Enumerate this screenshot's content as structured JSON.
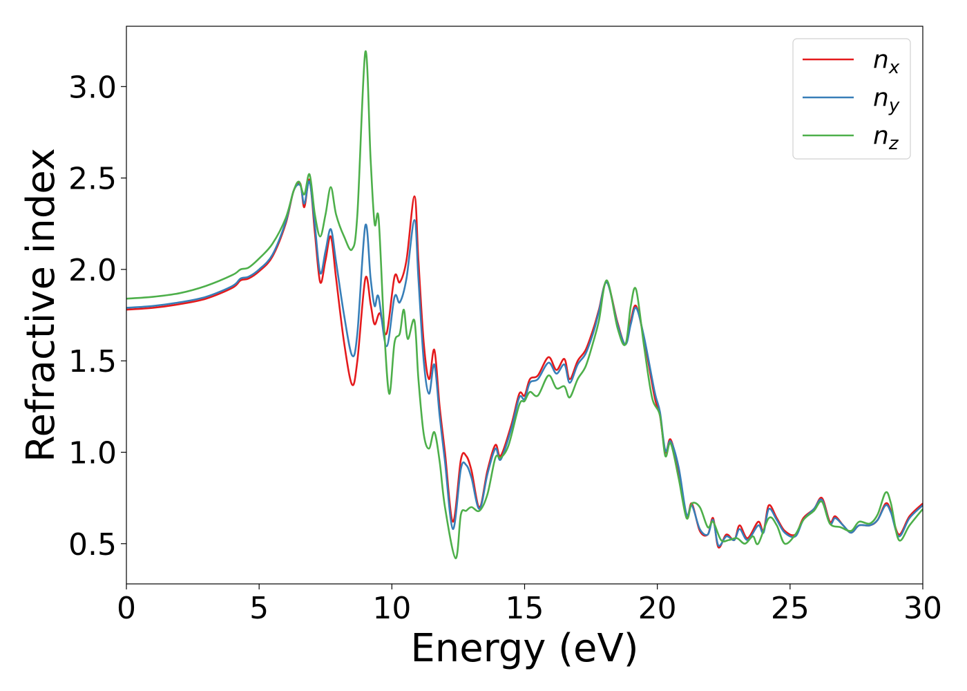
{
  "chart_data": {
    "type": "line",
    "title": "",
    "xlabel": "Energy (eV)",
    "ylabel": "Refractive index",
    "xlim": [
      0,
      30
    ],
    "ylim": [
      0.28,
      3.33
    ],
    "xticks": [
      0,
      5,
      10,
      15,
      20,
      25,
      30
    ],
    "yticks": [
      0.5,
      1.0,
      1.5,
      2.0,
      2.5,
      3.0
    ],
    "grid": false,
    "legend_position": "top-right",
    "series": [
      {
        "name": "n",
        "subscript": "x",
        "color": "#e41a1c",
        "points": [
          [
            0,
            1.78
          ],
          [
            1,
            1.79
          ],
          [
            2,
            1.81
          ],
          [
            3,
            1.84
          ],
          [
            4,
            1.9
          ],
          [
            4.3,
            1.94
          ],
          [
            4.6,
            1.95
          ],
          [
            5,
            1.99
          ],
          [
            5.5,
            2.07
          ],
          [
            6,
            2.25
          ],
          [
            6.3,
            2.43
          ],
          [
            6.55,
            2.47
          ],
          [
            6.7,
            2.34
          ],
          [
            6.9,
            2.49
          ],
          [
            7.1,
            2.2
          ],
          [
            7.3,
            1.93
          ],
          [
            7.5,
            2.05
          ],
          [
            7.7,
            2.18
          ],
          [
            7.9,
            1.95
          ],
          [
            8.2,
            1.6
          ],
          [
            8.5,
            1.37
          ],
          [
            8.7,
            1.5
          ],
          [
            9.0,
            1.95
          ],
          [
            9.2,
            1.81
          ],
          [
            9.35,
            1.7
          ],
          [
            9.55,
            1.76
          ],
          [
            9.8,
            1.65
          ],
          [
            10.1,
            1.96
          ],
          [
            10.3,
            1.93
          ],
          [
            10.55,
            2.05
          ],
          [
            10.85,
            2.4
          ],
          [
            11.0,
            2.05
          ],
          [
            11.2,
            1.6
          ],
          [
            11.4,
            1.4
          ],
          [
            11.6,
            1.56
          ],
          [
            11.8,
            1.25
          ],
          [
            12.0,
            1.0
          ],
          [
            12.3,
            0.62
          ],
          [
            12.6,
            0.96
          ],
          [
            12.8,
            0.98
          ],
          [
            13.0,
            0.9
          ],
          [
            13.3,
            0.7
          ],
          [
            13.6,
            0.9
          ],
          [
            13.9,
            1.04
          ],
          [
            14.1,
            0.98
          ],
          [
            14.5,
            1.15
          ],
          [
            14.8,
            1.32
          ],
          [
            15.0,
            1.31
          ],
          [
            15.2,
            1.4
          ],
          [
            15.5,
            1.42
          ],
          [
            15.9,
            1.52
          ],
          [
            16.2,
            1.45
          ],
          [
            16.5,
            1.51
          ],
          [
            16.7,
            1.4
          ],
          [
            17.0,
            1.5
          ],
          [
            17.3,
            1.56
          ],
          [
            17.6,
            1.68
          ],
          [
            17.8,
            1.78
          ],
          [
            18.1,
            1.93
          ],
          [
            18.5,
            1.71
          ],
          [
            18.8,
            1.59
          ],
          [
            19.0,
            1.72
          ],
          [
            19.2,
            1.8
          ],
          [
            19.5,
            1.62
          ],
          [
            19.9,
            1.3
          ],
          [
            20.1,
            1.2
          ],
          [
            20.3,
            1.0
          ],
          [
            20.5,
            1.07
          ],
          [
            20.8,
            0.9
          ],
          [
            21.1,
            0.65
          ],
          [
            21.3,
            0.72
          ],
          [
            21.6,
            0.57
          ],
          [
            21.9,
            0.55
          ],
          [
            22.1,
            0.64
          ],
          [
            22.3,
            0.48
          ],
          [
            22.6,
            0.55
          ],
          [
            22.9,
            0.52
          ],
          [
            23.1,
            0.6
          ],
          [
            23.4,
            0.53
          ],
          [
            23.8,
            0.62
          ],
          [
            24.0,
            0.57
          ],
          [
            24.2,
            0.71
          ],
          [
            24.5,
            0.64
          ],
          [
            24.8,
            0.57
          ],
          [
            25.2,
            0.55
          ],
          [
            25.5,
            0.64
          ],
          [
            25.9,
            0.69
          ],
          [
            26.2,
            0.75
          ],
          [
            26.5,
            0.62
          ],
          [
            26.7,
            0.65
          ],
          [
            27.0,
            0.6
          ],
          [
            27.3,
            0.56
          ],
          [
            27.6,
            0.6
          ],
          [
            28.0,
            0.6
          ],
          [
            28.3,
            0.63
          ],
          [
            28.6,
            0.72
          ],
          [
            28.8,
            0.68
          ],
          [
            29.1,
            0.55
          ],
          [
            29.5,
            0.65
          ],
          [
            30,
            0.72
          ]
        ]
      },
      {
        "name": "n",
        "subscript": "y",
        "color": "#377eb8",
        "points": [
          [
            0,
            1.79
          ],
          [
            1,
            1.8
          ],
          [
            2,
            1.82
          ],
          [
            3,
            1.85
          ],
          [
            4,
            1.91
          ],
          [
            4.3,
            1.95
          ],
          [
            4.6,
            1.96
          ],
          [
            5,
            2.0
          ],
          [
            5.5,
            2.08
          ],
          [
            6,
            2.26
          ],
          [
            6.3,
            2.43
          ],
          [
            6.55,
            2.46
          ],
          [
            6.7,
            2.36
          ],
          [
            6.9,
            2.48
          ],
          [
            7.1,
            2.24
          ],
          [
            7.3,
            1.98
          ],
          [
            7.5,
            2.1
          ],
          [
            7.7,
            2.22
          ],
          [
            7.9,
            2.04
          ],
          [
            8.2,
            1.75
          ],
          [
            8.5,
            1.53
          ],
          [
            8.7,
            1.65
          ],
          [
            9.0,
            2.24
          ],
          [
            9.2,
            1.95
          ],
          [
            9.35,
            1.8
          ],
          [
            9.5,
            1.85
          ],
          [
            9.8,
            1.58
          ],
          [
            10.1,
            1.85
          ],
          [
            10.3,
            1.82
          ],
          [
            10.55,
            1.95
          ],
          [
            10.85,
            2.27
          ],
          [
            11.0,
            1.95
          ],
          [
            11.2,
            1.5
          ],
          [
            11.4,
            1.32
          ],
          [
            11.6,
            1.48
          ],
          [
            11.8,
            1.2
          ],
          [
            12.0,
            0.95
          ],
          [
            12.3,
            0.58
          ],
          [
            12.6,
            0.91
          ],
          [
            12.8,
            0.93
          ],
          [
            13.0,
            0.86
          ],
          [
            13.3,
            0.69
          ],
          [
            13.6,
            0.88
          ],
          [
            13.9,
            1.02
          ],
          [
            14.1,
            0.96
          ],
          [
            14.5,
            1.13
          ],
          [
            14.8,
            1.3
          ],
          [
            15.0,
            1.29
          ],
          [
            15.2,
            1.38
          ],
          [
            15.5,
            1.4
          ],
          [
            15.9,
            1.49
          ],
          [
            16.2,
            1.43
          ],
          [
            16.5,
            1.48
          ],
          [
            16.7,
            1.38
          ],
          [
            17.0,
            1.48
          ],
          [
            17.3,
            1.54
          ],
          [
            17.6,
            1.66
          ],
          [
            17.8,
            1.77
          ],
          [
            18.1,
            1.93
          ],
          [
            18.5,
            1.7
          ],
          [
            18.8,
            1.59
          ],
          [
            19.0,
            1.7
          ],
          [
            19.2,
            1.79
          ],
          [
            19.5,
            1.63
          ],
          [
            19.9,
            1.33
          ],
          [
            20.1,
            1.22
          ],
          [
            20.3,
            1.01
          ],
          [
            20.5,
            1.06
          ],
          [
            20.8,
            0.92
          ],
          [
            21.1,
            0.66
          ],
          [
            21.3,
            0.71
          ],
          [
            21.6,
            0.58
          ],
          [
            21.9,
            0.55
          ],
          [
            22.1,
            0.63
          ],
          [
            22.3,
            0.49
          ],
          [
            22.6,
            0.54
          ],
          [
            22.9,
            0.52
          ],
          [
            23.1,
            0.58
          ],
          [
            23.4,
            0.52
          ],
          [
            23.8,
            0.6
          ],
          [
            24.0,
            0.56
          ],
          [
            24.2,
            0.69
          ],
          [
            24.5,
            0.63
          ],
          [
            24.8,
            0.56
          ],
          [
            25.2,
            0.54
          ],
          [
            25.5,
            0.63
          ],
          [
            25.9,
            0.69
          ],
          [
            26.2,
            0.74
          ],
          [
            26.5,
            0.61
          ],
          [
            26.7,
            0.64
          ],
          [
            27.0,
            0.6
          ],
          [
            27.3,
            0.56
          ],
          [
            27.6,
            0.6
          ],
          [
            28.0,
            0.6
          ],
          [
            28.3,
            0.63
          ],
          [
            28.6,
            0.71
          ],
          [
            28.8,
            0.67
          ],
          [
            29.1,
            0.54
          ],
          [
            29.5,
            0.64
          ],
          [
            30,
            0.71
          ]
        ]
      },
      {
        "name": "n",
        "subscript": "z",
        "color": "#4daf4a",
        "points": [
          [
            0,
            1.84
          ],
          [
            1,
            1.85
          ],
          [
            2,
            1.87
          ],
          [
            3,
            1.91
          ],
          [
            4,
            1.97
          ],
          [
            4.3,
            2.0
          ],
          [
            4.6,
            2.01
          ],
          [
            5,
            2.06
          ],
          [
            5.5,
            2.14
          ],
          [
            6,
            2.28
          ],
          [
            6.3,
            2.43
          ],
          [
            6.5,
            2.48
          ],
          [
            6.7,
            2.41
          ],
          [
            6.9,
            2.52
          ],
          [
            7.1,
            2.3
          ],
          [
            7.3,
            2.18
          ],
          [
            7.5,
            2.3
          ],
          [
            7.7,
            2.45
          ],
          [
            7.9,
            2.3
          ],
          [
            8.2,
            2.18
          ],
          [
            8.5,
            2.11
          ],
          [
            8.7,
            2.3
          ],
          [
            9.0,
            3.19
          ],
          [
            9.2,
            2.6
          ],
          [
            9.35,
            2.25
          ],
          [
            9.5,
            2.28
          ],
          [
            9.7,
            1.7
          ],
          [
            9.9,
            1.32
          ],
          [
            10.1,
            1.6
          ],
          [
            10.3,
            1.65
          ],
          [
            10.45,
            1.78
          ],
          [
            10.6,
            1.62
          ],
          [
            10.85,
            1.72
          ],
          [
            11.0,
            1.4
          ],
          [
            11.2,
            1.1
          ],
          [
            11.4,
            1.02
          ],
          [
            11.6,
            1.11
          ],
          [
            11.8,
            0.95
          ],
          [
            12.0,
            0.7
          ],
          [
            12.4,
            0.42
          ],
          [
            12.6,
            0.66
          ],
          [
            12.8,
            0.68
          ],
          [
            13.0,
            0.7
          ],
          [
            13.3,
            0.68
          ],
          [
            13.6,
            0.77
          ],
          [
            13.9,
            0.97
          ],
          [
            14.1,
            0.97
          ],
          [
            14.4,
            1.04
          ],
          [
            14.8,
            1.26
          ],
          [
            15.0,
            1.28
          ],
          [
            15.2,
            1.33
          ],
          [
            15.5,
            1.31
          ],
          [
            15.9,
            1.42
          ],
          [
            16.2,
            1.35
          ],
          [
            16.5,
            1.36
          ],
          [
            16.7,
            1.3
          ],
          [
            17.0,
            1.4
          ],
          [
            17.3,
            1.47
          ],
          [
            17.6,
            1.61
          ],
          [
            17.8,
            1.72
          ],
          [
            18.1,
            1.94
          ],
          [
            18.5,
            1.68
          ],
          [
            18.8,
            1.59
          ],
          [
            19.0,
            1.8
          ],
          [
            19.2,
            1.89
          ],
          [
            19.5,
            1.58
          ],
          [
            19.8,
            1.3
          ],
          [
            20.1,
            1.2
          ],
          [
            20.3,
            0.98
          ],
          [
            20.5,
            1.05
          ],
          [
            20.8,
            0.86
          ],
          [
            21.1,
            0.64
          ],
          [
            21.3,
            0.72
          ],
          [
            21.6,
            0.7
          ],
          [
            21.9,
            0.59
          ],
          [
            22.1,
            0.62
          ],
          [
            22.4,
            0.52
          ],
          [
            22.7,
            0.52
          ],
          [
            23.0,
            0.53
          ],
          [
            23.3,
            0.5
          ],
          [
            23.6,
            0.54
          ],
          [
            23.8,
            0.5
          ],
          [
            24.2,
            0.64
          ],
          [
            24.5,
            0.6
          ],
          [
            24.8,
            0.5
          ],
          [
            25.2,
            0.55
          ],
          [
            25.5,
            0.63
          ],
          [
            25.9,
            0.68
          ],
          [
            26.2,
            0.73
          ],
          [
            26.5,
            0.61
          ],
          [
            26.9,
            0.59
          ],
          [
            27.3,
            0.57
          ],
          [
            27.6,
            0.62
          ],
          [
            28.0,
            0.61
          ],
          [
            28.3,
            0.66
          ],
          [
            28.6,
            0.78
          ],
          [
            28.8,
            0.72
          ],
          [
            29.1,
            0.52
          ],
          [
            29.5,
            0.6
          ],
          [
            30,
            0.69
          ]
        ]
      }
    ]
  }
}
